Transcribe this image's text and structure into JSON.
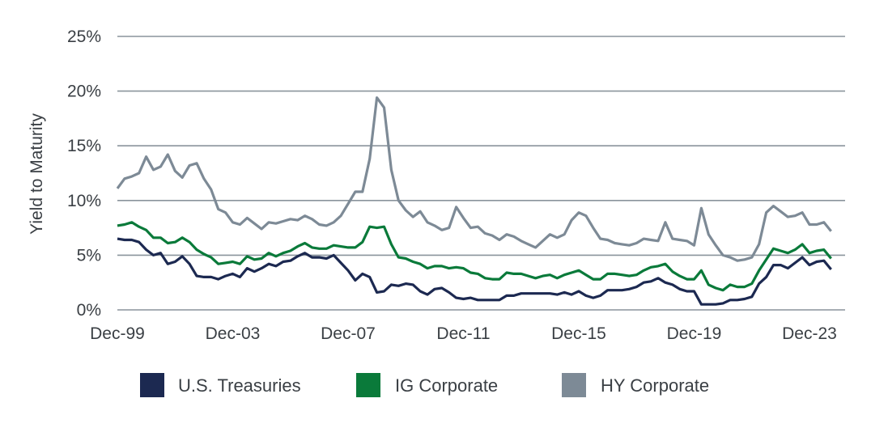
{
  "chart_data": {
    "type": "line",
    "title": "",
    "xlabel": "",
    "ylabel": "Yield to Maturity",
    "ylim": [
      0,
      25
    ],
    "yticks": [
      "0%",
      "5%",
      "10%",
      "15%",
      "20%",
      "25%"
    ],
    "ytick_values": [
      0,
      5,
      10,
      15,
      20,
      25
    ],
    "xticks": [
      "Dec-99",
      "Dec-03",
      "Dec-07",
      "Dec-11",
      "Dec-15",
      "Dec-19",
      "Dec-23"
    ],
    "xtick_index": [
      0,
      16,
      32,
      48,
      64,
      80,
      96
    ],
    "x_start": "Dec-99",
    "frequency": "quarterly",
    "grid": true,
    "legend_position": "bottom",
    "series": [
      {
        "name": "U.S. Treasuries",
        "color": "#1c2951",
        "values": [
          6.5,
          6.4,
          6.4,
          6.2,
          5.5,
          5.0,
          5.2,
          4.2,
          4.4,
          4.9,
          4.2,
          3.1,
          3.0,
          3.0,
          2.8,
          3.1,
          3.3,
          3.0,
          3.8,
          3.5,
          3.8,
          4.2,
          4.0,
          4.4,
          4.5,
          4.9,
          5.2,
          4.8,
          4.8,
          4.7,
          5.0,
          4.3,
          3.6,
          2.7,
          3.3,
          3.0,
          1.6,
          1.7,
          2.3,
          2.2,
          2.4,
          2.3,
          1.7,
          1.4,
          1.9,
          2.0,
          1.6,
          1.1,
          1.0,
          1.1,
          0.9,
          0.9,
          0.9,
          0.9,
          1.3,
          1.3,
          1.5,
          1.5,
          1.5,
          1.5,
          1.5,
          1.4,
          1.6,
          1.4,
          1.7,
          1.3,
          1.1,
          1.3,
          1.8,
          1.8,
          1.8,
          1.9,
          2.1,
          2.5,
          2.6,
          2.9,
          2.5,
          2.3,
          1.9,
          1.7,
          1.7,
          0.5,
          0.5,
          0.5,
          0.6,
          0.9,
          0.9,
          1.0,
          1.2,
          2.4,
          3.0,
          4.1,
          4.1,
          3.8,
          4.3,
          4.8,
          4.1,
          4.4,
          4.5,
          3.7
        ]
      },
      {
        "name": "IG Corporate",
        "color": "#0a7a3a",
        "values": [
          7.7,
          7.8,
          8.0,
          7.6,
          7.3,
          6.6,
          6.6,
          6.1,
          6.2,
          6.6,
          6.2,
          5.5,
          5.1,
          4.8,
          4.2,
          4.3,
          4.4,
          4.2,
          4.9,
          4.6,
          4.7,
          5.2,
          4.9,
          5.2,
          5.4,
          5.8,
          6.1,
          5.7,
          5.6,
          5.6,
          5.9,
          5.8,
          5.7,
          5.7,
          6.2,
          7.6,
          7.5,
          7.6,
          6.0,
          4.8,
          4.7,
          4.4,
          4.2,
          3.8,
          4.0,
          4.0,
          3.8,
          3.9,
          3.8,
          3.4,
          3.3,
          2.9,
          2.8,
          2.8,
          3.4,
          3.3,
          3.3,
          3.1,
          2.9,
          3.1,
          3.2,
          2.9,
          3.2,
          3.4,
          3.6,
          3.2,
          2.8,
          2.8,
          3.3,
          3.3,
          3.2,
          3.1,
          3.2,
          3.6,
          3.9,
          4.0,
          4.2,
          3.5,
          3.1,
          2.8,
          2.8,
          3.6,
          2.3,
          2.0,
          1.8,
          2.3,
          2.1,
          2.1,
          2.4,
          3.6,
          4.6,
          5.6,
          5.4,
          5.2,
          5.5,
          6.0,
          5.2,
          5.4,
          5.5,
          4.7
        ]
      },
      {
        "name": "HY Corporate",
        "color": "#7d8a96",
        "values": [
          11.1,
          12.0,
          12.2,
          12.5,
          14.0,
          12.8,
          13.1,
          14.2,
          12.7,
          12.1,
          13.2,
          13.4,
          12.0,
          11.0,
          9.2,
          8.9,
          8.0,
          7.8,
          8.4,
          7.9,
          7.4,
          8.0,
          7.9,
          8.1,
          8.3,
          8.2,
          8.6,
          8.3,
          7.8,
          7.7,
          8.0,
          8.6,
          9.7,
          10.8,
          10.8,
          13.8,
          19.4,
          18.5,
          12.8,
          10.0,
          9.1,
          8.5,
          9.0,
          8.0,
          7.7,
          7.3,
          7.5,
          9.4,
          8.4,
          7.5,
          7.6,
          7.0,
          6.8,
          6.4,
          6.9,
          6.7,
          6.3,
          6.0,
          5.7,
          6.3,
          6.9,
          6.6,
          6.9,
          8.2,
          8.9,
          8.6,
          7.5,
          6.5,
          6.4,
          6.1,
          6.0,
          5.9,
          6.1,
          6.5,
          6.4,
          6.3,
          8.0,
          6.5,
          6.4,
          6.3,
          5.9,
          9.3,
          6.9,
          5.9,
          5.0,
          4.8,
          4.5,
          4.6,
          4.8,
          6.0,
          8.9,
          9.5,
          9.0,
          8.5,
          8.6,
          8.9,
          7.8,
          7.8,
          8.0,
          7.2
        ]
      }
    ]
  }
}
